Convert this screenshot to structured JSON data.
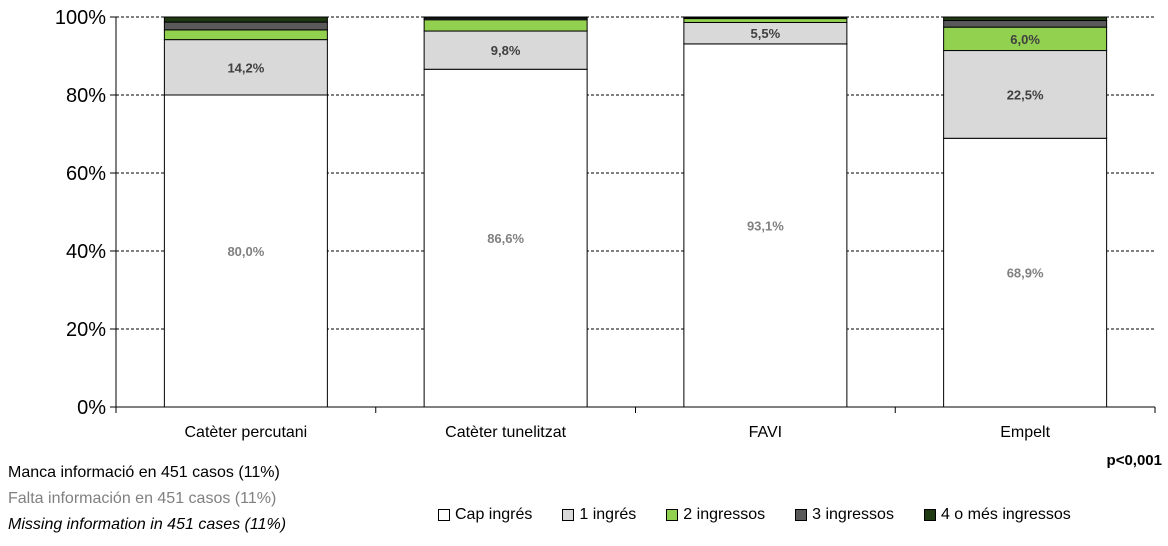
{
  "chart_data": {
    "type": "bar",
    "stacked": true,
    "percent_stacked": true,
    "title": "",
    "xlabel": "",
    "ylabel": "",
    "ylim": [
      0,
      100
    ],
    "yticks": [
      "0%",
      "20%",
      "40%",
      "60%",
      "80%",
      "100%"
    ],
    "grid": "horizontal-dashed",
    "legend_position": "bottom-right",
    "categories": [
      "Catèter percutani",
      "Catèter tunelitzat",
      "FAVI",
      "Empelt"
    ],
    "series": [
      {
        "name": "Cap ingrés",
        "color": "#ffffff",
        "values": [
          80.0,
          86.6,
          93.1,
          68.9
        ],
        "labels": [
          "80,0%",
          "86,6%",
          "93,1%",
          "68,9%"
        ],
        "label_color": "#808080"
      },
      {
        "name": "1 ingrés",
        "color": "#d9d9d9",
        "values": [
          14.2,
          9.8,
          5.5,
          22.5
        ],
        "labels": [
          "14,2%",
          "9,8%",
          "5,5%",
          "22,5%"
        ],
        "label_color": "#404040"
      },
      {
        "name": "2 ingressos",
        "color": "#92d050",
        "values": [
          2.5,
          2.9,
          1.0,
          6.0
        ],
        "labels": [
          "",
          "",
          "",
          "6,0%"
        ],
        "label_color": "#404040"
      },
      {
        "name": "3 ingressos",
        "color": "#595959",
        "values": [
          2.0,
          0.4,
          0.2,
          1.7
        ],
        "labels": [
          "",
          "",
          "",
          ""
        ],
        "label_color": "#ffffff"
      },
      {
        "name": "4 o més ingressos",
        "color": "#1f3a12",
        "values": [
          1.3,
          0.3,
          0.2,
          0.9
        ],
        "labels": [
          "",
          "",
          "",
          ""
        ],
        "label_color": "#ffffff"
      }
    ]
  },
  "notes": {
    "ca": "Manca informació en 451 casos (11%)",
    "es": "Falta información  en 451 casos (11%)",
    "en": "Missing information in 451 cases (11%)"
  },
  "p_value": "p<0,001"
}
